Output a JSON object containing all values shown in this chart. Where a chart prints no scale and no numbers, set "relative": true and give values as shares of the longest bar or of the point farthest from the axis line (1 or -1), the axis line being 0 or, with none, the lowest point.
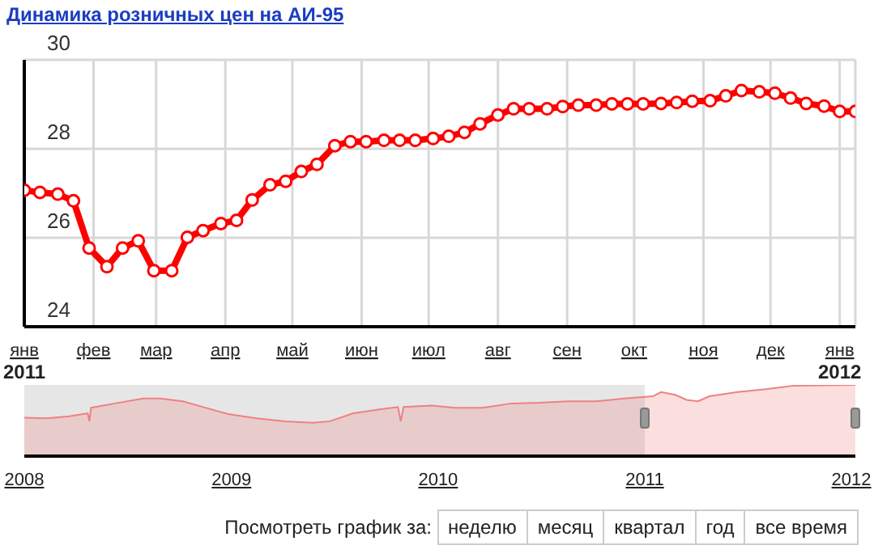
{
  "chart_data": [
    {
      "type": "line",
      "title": "Динамика розничных цен на АИ-95",
      "x": [
        "2011-01-01",
        "2011-01-08",
        "2011-01-16",
        "2011-01-23",
        "2011-01-30",
        "2011-02-07",
        "2011-02-14",
        "2011-02-21",
        "2011-02-28",
        "2011-03-08",
        "2011-03-15",
        "2011-03-22",
        "2011-03-30",
        "2011-04-06",
        "2011-04-13",
        "2011-04-21",
        "2011-04-28",
        "2011-05-05",
        "2011-05-12",
        "2011-05-20",
        "2011-05-27",
        "2011-06-03",
        "2011-06-11",
        "2011-06-18",
        "2011-06-25",
        "2011-07-03",
        "2011-07-10",
        "2011-07-17",
        "2011-07-24",
        "2011-08-01",
        "2011-08-08",
        "2011-08-15",
        "2011-08-23",
        "2011-08-30",
        "2011-09-06",
        "2011-09-14",
        "2011-09-21",
        "2011-09-28",
        "2011-10-05",
        "2011-10-13",
        "2011-10-20",
        "2011-10-27",
        "2011-11-04",
        "2011-11-11",
        "2011-11-18",
        "2011-11-26",
        "2011-12-03",
        "2011-12-10",
        "2011-12-17",
        "2011-12-25",
        "2012-01-01",
        "2012-01-08"
      ],
      "series": [
        {
          "color": "#ff0000",
          "values": [
            27.07,
            27.02,
            26.98,
            26.83,
            25.77,
            25.35,
            25.77,
            25.93,
            25.26,
            25.26,
            26.01,
            26.16,
            26.32,
            26.39,
            26.85,
            27.19,
            27.27,
            27.49,
            27.65,
            28.07,
            28.16,
            28.16,
            28.19,
            28.19,
            28.19,
            28.23,
            28.28,
            28.37,
            28.56,
            28.76,
            28.9,
            28.9,
            28.9,
            28.95,
            28.98,
            28.98,
            29.01,
            29.01,
            29.01,
            29.02,
            29.04,
            29.07,
            29.08,
            29.19,
            29.31,
            29.28,
            29.25,
            29.14,
            29.02,
            28.96,
            28.84,
            28.84
          ]
        }
      ],
      "xlim": [
        "2011-01-01",
        "2012-01-08"
      ],
      "xticks": [
        {
          "value": "2011-01-01",
          "label": "янв\n2011"
        },
        {
          "value": "2011-02-01",
          "label": "фев"
        },
        {
          "value": "2011-03-01",
          "label": "мар"
        },
        {
          "value": "2011-04-01",
          "label": "апр"
        },
        {
          "value": "2011-05-01",
          "label": "май"
        },
        {
          "value": "2011-06-01",
          "label": "июн"
        },
        {
          "value": "2011-07-01",
          "label": "июл"
        },
        {
          "value": "2011-08-01",
          "label": "авг"
        },
        {
          "value": "2011-09-01",
          "label": "сен"
        },
        {
          "value": "2011-10-01",
          "label": "окт"
        },
        {
          "value": "2011-11-01",
          "label": "ноя"
        },
        {
          "value": "2011-12-01",
          "label": "дек"
        },
        {
          "value": "2012-01-01",
          "label": "янв\n2012"
        }
      ],
      "ylim": [
        24,
        30
      ],
      "yticks": [
        24,
        26,
        28,
        30
      ],
      "grid": true,
      "marker": "circle",
      "line_style": "solid",
      "annotations": [
        "Посмотреть график за:",
        "неделю",
        "месяц",
        "квартал",
        "год",
        "все время"
      ]
    },
    {
      "type": "area",
      "relative": true,
      "x": [
        "2008-01-01",
        "2008-02-10",
        "2008-03-21",
        "2008-04-20",
        "2008-04-22",
        "2008-04-25",
        "2008-04-28",
        "2008-06-09",
        "2008-07-29",
        "2008-08-28",
        "2008-10-07",
        "2008-11-16",
        "2008-12-26",
        "2009-02-14",
        "2009-04-05",
        "2009-05-25",
        "2009-06-24",
        "2009-08-03",
        "2009-09-22",
        "2009-10-22",
        "2009-10-27",
        "2009-11-01",
        "2009-12-21",
        "2010-01-30",
        "2010-03-21",
        "2010-05-10",
        "2010-06-29",
        "2010-08-18",
        "2010-10-07",
        "2010-11-26",
        "2011-01-15",
        "2011-01-30",
        "2011-02-24",
        "2011-03-16",
        "2011-04-05",
        "2011-04-25",
        "2011-06-14",
        "2011-08-03",
        "2011-09-22",
        "2012-01-08"
      ],
      "series": [
        {
          "color": "#f08080",
          "values": [
            0.54,
            0.53,
            0.56,
            0.6,
            0.6,
            0.49,
            0.68,
            0.74,
            0.81,
            0.81,
            0.77,
            0.68,
            0.59,
            0.53,
            0.49,
            0.47,
            0.49,
            0.6,
            0.66,
            0.69,
            0.49,
            0.69,
            0.71,
            0.68,
            0.68,
            0.74,
            0.75,
            0.77,
            0.77,
            0.81,
            0.84,
            0.9,
            0.86,
            0.79,
            0.77,
            0.84,
            0.9,
            0.94,
            0.99,
            1.0
          ]
        }
      ],
      "xlim": [
        "2008",
        "2012-01-08"
      ],
      "xticks": [
        "2008",
        "2009",
        "2010",
        "2011",
        "2012"
      ],
      "bands": [
        {
          "axis": "x",
          "from": "2008",
          "to": "2011",
          "color": "#e6e6e6"
        }
      ]
    }
  ]
}
